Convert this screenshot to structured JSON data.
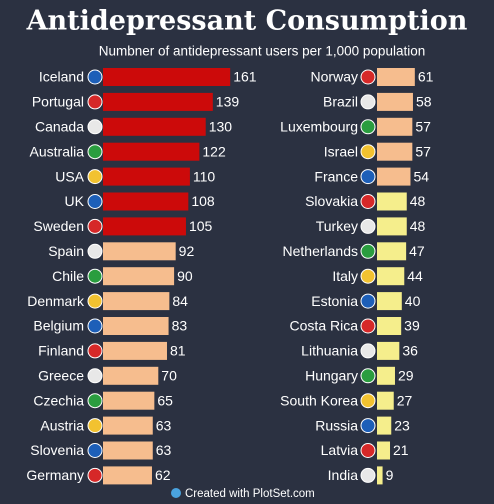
{
  "title": "Antidepressant Consumption",
  "subtitle": "Numbner of antidepressant users per 1,000 population",
  "footer": "Created with PlotSet.com",
  "chart_data": [
    {
      "type": "bar",
      "categories": [
        "Iceland",
        "Portugal",
        "Canada",
        "Australia",
        "USA",
        "UK",
        "Sweden",
        "Spain",
        "Chile",
        "Denmark",
        "Belgium",
        "Finland",
        "Greece",
        "Czechia",
        "Austria",
        "Slovenia",
        "Germany"
      ],
      "values": [
        161,
        139,
        130,
        122,
        110,
        108,
        105,
        92,
        90,
        84,
        83,
        81,
        70,
        65,
        63,
        63,
        62
      ],
      "colors": [
        "#cc0a0a",
        "#cc0a0a",
        "#cc0a0a",
        "#cc0a0a",
        "#cc0a0a",
        "#cc0a0a",
        "#cc0a0a",
        "#f6bd8e",
        "#f6bd8e",
        "#f6bd8e",
        "#f6bd8e",
        "#f6bd8e",
        "#f6bd8e",
        "#f6bd8e",
        "#f6bd8e",
        "#f6bd8e",
        "#f6bd8e"
      ]
    },
    {
      "type": "bar",
      "categories": [
        "Norway",
        "Brazil",
        "Luxembourg",
        "Israel",
        "France",
        "Slovakia",
        "Turkey",
        "Netherlands",
        "Italy",
        "Estonia",
        "Costa Rica",
        "Lithuania",
        "Hungary",
        "South Korea",
        "Russia",
        "Latvia",
        "India"
      ],
      "values": [
        61,
        58,
        57,
        57,
        54,
        48,
        48,
        47,
        44,
        40,
        39,
        36,
        29,
        27,
        23,
        21,
        9
      ],
      "colors": [
        "#f6bd8e",
        "#f6bd8e",
        "#f6bd8e",
        "#f6bd8e",
        "#f6bd8e",
        "#f5ee8c",
        "#f5ee8c",
        "#f5ee8c",
        "#f5ee8c",
        "#f5ee8c",
        "#f5ee8c",
        "#f5ee8c",
        "#f5ee8c",
        "#f5ee8c",
        "#f5ee8c",
        "#f5ee8c",
        "#f5ee8c"
      ]
    }
  ]
}
